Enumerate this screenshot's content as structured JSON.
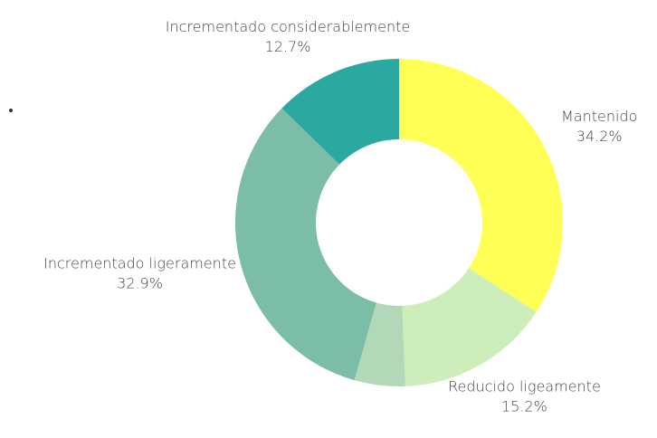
{
  "chart_data": {
    "type": "pie",
    "categories": [
      "Mantenido",
      "Reducido ligeamente",
      null,
      "Incrementado ligeramente",
      "Incrementado considerablemente"
    ],
    "values": [
      34.2,
      15.2,
      5.0,
      32.9,
      12.7
    ],
    "value_labels": [
      "34.2%",
      "15.2%",
      null,
      "32.9%",
      "12.7%"
    ],
    "colors": [
      "#ffff55",
      "#cdedbb",
      "#b3d8b8",
      "#7bbda6",
      "#2ba8a0"
    ]
  }
}
